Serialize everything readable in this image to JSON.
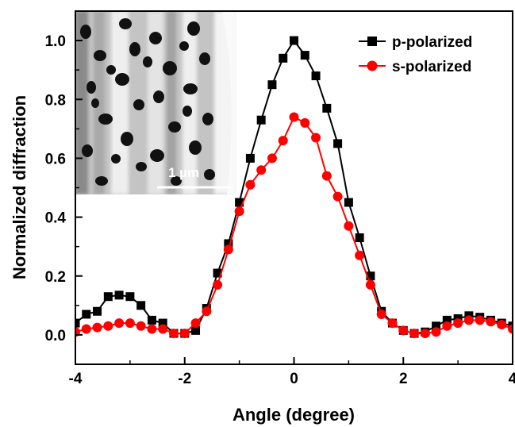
{
  "chart_data": {
    "type": "line",
    "xlabel": "Angle (degree)",
    "ylabel": "Normalized diffraction",
    "xlim": [
      -4,
      4
    ],
    "ylim": [
      -0.1,
      1.1
    ],
    "xticks": [
      -4,
      -2,
      0,
      2,
      4
    ],
    "yticks": [
      0.0,
      0.2,
      0.4,
      0.6,
      0.8,
      1.0
    ],
    "xtick_labels": [
      "-4",
      "-2",
      "0",
      "2",
      "4"
    ],
    "ytick_labels": [
      "0.0",
      "0.2",
      "0.4",
      "0.6",
      "0.8",
      "1.0"
    ],
    "grid": false,
    "legend_position": "top-right",
    "series": [
      {
        "name": "p-polarized",
        "color": "#000000",
        "marker": "square",
        "x": [
          -4.0,
          -3.8,
          -3.6,
          -3.4,
          -3.2,
          -3.0,
          -2.8,
          -2.6,
          -2.4,
          -2.2,
          -2.0,
          -1.8,
          -1.6,
          -1.4,
          -1.2,
          -1.0,
          -0.8,
          -0.6,
          -0.4,
          -0.2,
          0.0,
          0.2,
          0.4,
          0.6,
          0.8,
          1.0,
          1.2,
          1.4,
          1.6,
          1.8,
          2.0,
          2.2,
          2.4,
          2.6,
          2.8,
          3.0,
          3.2,
          3.4,
          3.6,
          3.8,
          4.0
        ],
        "y": [
          0.04,
          0.07,
          0.08,
          0.13,
          0.135,
          0.13,
          0.1,
          0.05,
          0.04,
          0.005,
          0.005,
          0.015,
          0.09,
          0.21,
          0.31,
          0.45,
          0.6,
          0.73,
          0.85,
          0.94,
          1.0,
          0.95,
          0.88,
          0.77,
          0.65,
          0.45,
          0.33,
          0.2,
          0.08,
          0.04,
          0.015,
          0.005,
          0.01,
          0.03,
          0.05,
          0.055,
          0.065,
          0.06,
          0.05,
          0.04,
          0.03
        ]
      },
      {
        "name": "s-polarized",
        "color": "#ff0000",
        "marker": "circle",
        "x": [
          -4.0,
          -3.8,
          -3.6,
          -3.4,
          -3.2,
          -3.0,
          -2.8,
          -2.6,
          -2.4,
          -2.2,
          -2.0,
          -1.8,
          -1.6,
          -1.4,
          -1.2,
          -1.0,
          -0.8,
          -0.6,
          -0.4,
          -0.2,
          0.0,
          0.2,
          0.4,
          0.6,
          0.8,
          1.0,
          1.2,
          1.4,
          1.6,
          1.8,
          2.0,
          2.2,
          2.4,
          2.6,
          2.8,
          3.0,
          3.2,
          3.4,
          3.6,
          3.8,
          4.0
        ],
        "y": [
          0.01,
          0.02,
          0.025,
          0.03,
          0.04,
          0.04,
          0.03,
          0.02,
          0.02,
          0.005,
          0.005,
          0.04,
          0.08,
          0.17,
          0.29,
          0.42,
          0.51,
          0.56,
          0.6,
          0.66,
          0.74,
          0.72,
          0.67,
          0.54,
          0.47,
          0.37,
          0.27,
          0.17,
          0.07,
          0.04,
          0.015,
          0.005,
          0.005,
          0.01,
          0.03,
          0.04,
          0.05,
          0.05,
          0.045,
          0.035,
          0.02
        ]
      }
    ],
    "annotations": [
      "1 µm"
    ]
  },
  "inset": {
    "scale_bar_label": "1 µm"
  }
}
